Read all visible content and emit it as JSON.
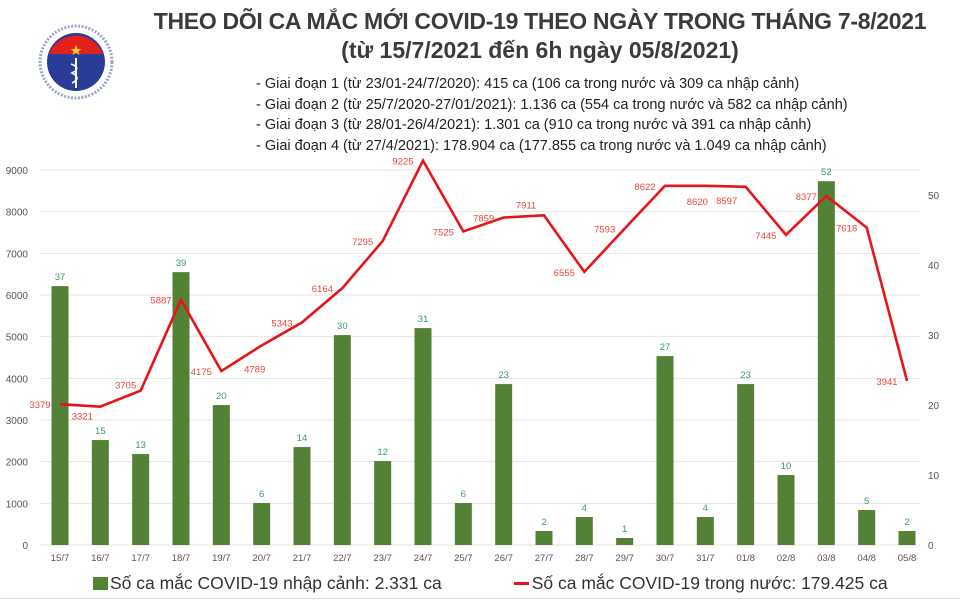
{
  "logo": {
    "text_top": "BỘ Y TẾ",
    "text_bottom": "MINISTRY OF HEALTH"
  },
  "header": {
    "title": "THEO DÕI CA MẮC MỚI COVID-19 THEO NGÀY TRONG THÁNG 7-8/2021",
    "subtitle": "(từ 15/7/2021 đến 6h ngày 05/8/2021)",
    "notes": [
      "- Giai đoạn 1 (từ 23/01-24/7/2020): 415 ca (106 ca trong nước và 309 ca nhập cảnh)",
      "- Giai đoạn 2 (từ 25/7/2020-27/01/2021): 1.136 ca (554 ca trong nước và 582 ca nhập cảnh)",
      "- Giai đoạn 3 (từ 28/01-26/4/2021): 1.301 ca (910 ca trong nước và 391 ca nhập cảnh)",
      "- Giai đoạn 4 (từ 27/4/2021): 178.904 ca (177.855 ca trong nước và 1.049 ca nhập cảnh)"
    ]
  },
  "chart_data": {
    "type": "bar+line",
    "categories": [
      "15/7",
      "16/7",
      "17/7",
      "18/7",
      "19/7",
      "20/7",
      "21/7",
      "22/7",
      "23/7",
      "24/7",
      "25/7",
      "26/7",
      "27/7",
      "28/7",
      "29/7",
      "30/7",
      "31/7",
      "01/8",
      "02/8",
      "03/8",
      "04/8",
      "05/8"
    ],
    "series": [
      {
        "name": "Số ca mắc COVID-19 nhập cảnh: 2.331 ca",
        "type": "bar",
        "axis": "right",
        "color": "#538135",
        "label_color": "#3a9a6e",
        "values": [
          37,
          15,
          13,
          39,
          20,
          6,
          14,
          30,
          12,
          31,
          6,
          23,
          2,
          4,
          1,
          27,
          4,
          23,
          10,
          52,
          5,
          2
        ]
      },
      {
        "name": "Số ca mắc COVID-19 trong nước: 179.425 ca",
        "type": "line",
        "axis": "left",
        "color": "#e8141a",
        "label_color": "#e8473a",
        "values": [
          3379,
          3321,
          3705,
          5887,
          4175,
          4789,
          5343,
          6164,
          7295,
          9225,
          7525,
          7859,
          7911,
          6555,
          7593,
          8622,
          8620,
          8597,
          7445,
          8377,
          7618,
          3941
        ]
      }
    ],
    "y_left": {
      "ylim": [
        0,
        9000
      ],
      "ticks": [
        "0",
        "1000",
        "2000",
        "3000",
        "4000",
        "5000",
        "6000",
        "7000",
        "8000",
        "9000"
      ]
    },
    "y_right": {
      "ylim": [
        0,
        53.6
      ],
      "ticks": [
        "0",
        "10",
        "20",
        "30",
        "40",
        "50"
      ]
    },
    "grid": true,
    "legend": "bottom"
  }
}
